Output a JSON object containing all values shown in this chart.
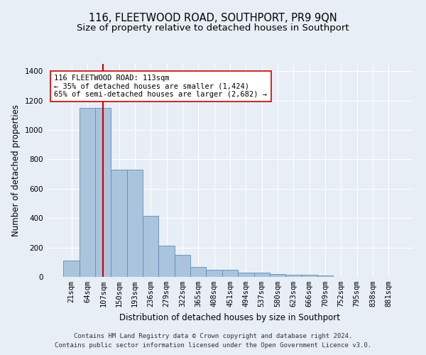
{
  "title": "116, FLEETWOOD ROAD, SOUTHPORT, PR9 9QN",
  "subtitle": "Size of property relative to detached houses in Southport",
  "xlabel": "Distribution of detached houses by size in Southport",
  "ylabel": "Number of detached properties",
  "footer1": "Contains HM Land Registry data © Crown copyright and database right 2024.",
  "footer2": "Contains public sector information licensed under the Open Government Licence v3.0.",
  "bar_labels": [
    "21sqm",
    "64sqm",
    "107sqm",
    "150sqm",
    "193sqm",
    "236sqm",
    "279sqm",
    "322sqm",
    "365sqm",
    "408sqm",
    "451sqm",
    "494sqm",
    "537sqm",
    "580sqm",
    "623sqm",
    "666sqm",
    "709sqm",
    "752sqm",
    "795sqm",
    "838sqm",
    "881sqm"
  ],
  "bar_values": [
    110,
    1150,
    1150,
    730,
    730,
    415,
    215,
    148,
    70,
    50,
    50,
    30,
    30,
    20,
    15,
    15,
    10,
    0,
    0,
    0,
    0
  ],
  "bar_color": "#aac4de",
  "bar_edge_color": "#5b8db8",
  "vline_x_idx": 2,
  "vline_color": "#cc0000",
  "annotation_text": "116 FLEETWOOD ROAD: 113sqm\n← 35% of detached houses are smaller (1,424)\n65% of semi-detached houses are larger (2,682) →",
  "annotation_box_facecolor": "#ffffff",
  "annotation_box_edgecolor": "#cc0000",
  "ylim": [
    0,
    1450
  ],
  "yticks": [
    0,
    200,
    400,
    600,
    800,
    1000,
    1200,
    1400
  ],
  "background_color": "#e8eef5",
  "grid_color": "#ffffff",
  "title_fontsize": 10.5,
  "subtitle_fontsize": 9.5,
  "ylabel_fontsize": 8.5,
  "xlabel_fontsize": 8.5,
  "tick_fontsize": 7.5,
  "annotation_fontsize": 7.5,
  "footer_fontsize": 6.5
}
